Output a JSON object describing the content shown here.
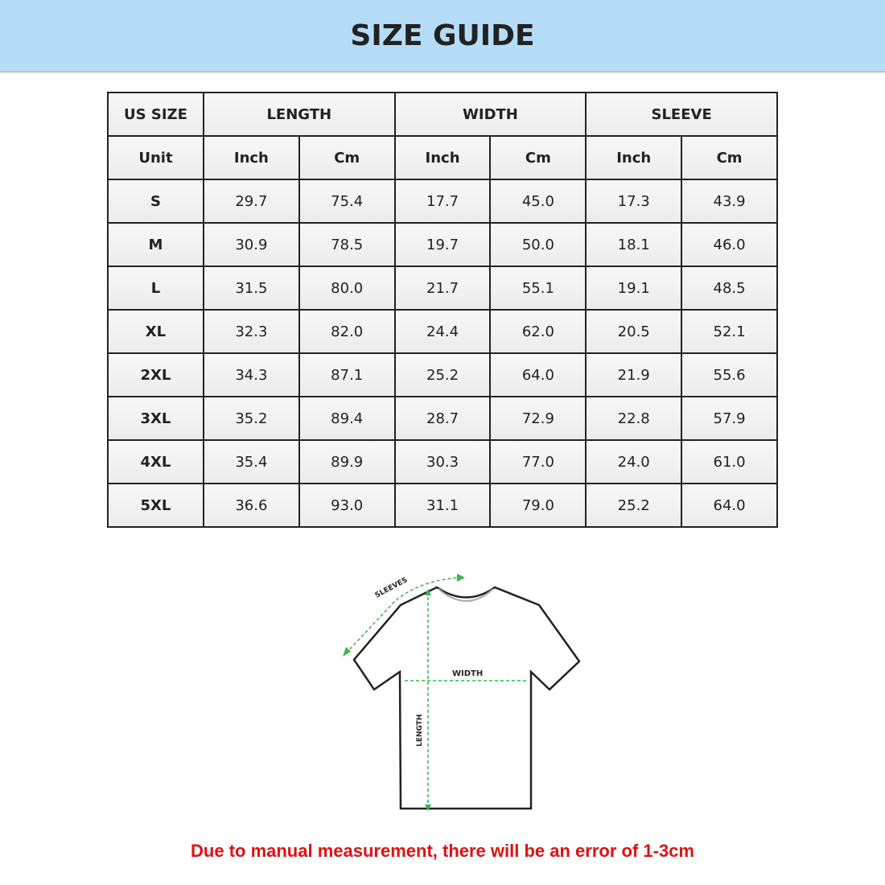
{
  "title": "SIZE GUIDE",
  "table": {
    "group_headers": [
      "US SIZE",
      "LENGTH",
      "WIDTH",
      "SLEEVE"
    ],
    "unit_row": [
      "Unit",
      "Inch",
      "Cm",
      "Inch",
      "Cm",
      "Inch",
      "Cm"
    ],
    "rows": [
      [
        "S",
        "29.7",
        "75.4",
        "17.7",
        "45.0",
        "17.3",
        "43.9"
      ],
      [
        "M",
        "30.9",
        "78.5",
        "19.7",
        "50.0",
        "18.1",
        "46.0"
      ],
      [
        "L",
        "31.5",
        "80.0",
        "21.7",
        "55.1",
        "19.1",
        "48.5"
      ],
      [
        "XL",
        "32.3",
        "82.0",
        "24.4",
        "62.0",
        "20.5",
        "52.1"
      ],
      [
        "2XL",
        "34.3",
        "87.1",
        "25.2",
        "64.0",
        "21.9",
        "55.6"
      ],
      [
        "3XL",
        "35.2",
        "89.4",
        "28.7",
        "72.9",
        "22.8",
        "57.9"
      ],
      [
        "4XL",
        "35.4",
        "89.9",
        "30.3",
        "77.0",
        "24.0",
        "61.0"
      ],
      [
        "5XL",
        "36.6",
        "93.0",
        "31.1",
        "79.0",
        "25.2",
        "64.0"
      ]
    ]
  },
  "diagram": {
    "sleeves": "SLEEVES",
    "width": "WIDTH",
    "length": "LENGTH",
    "arrow_color": "#3cb44b"
  },
  "note": "Due to manual measurement, there will be an error of 1-3cm"
}
